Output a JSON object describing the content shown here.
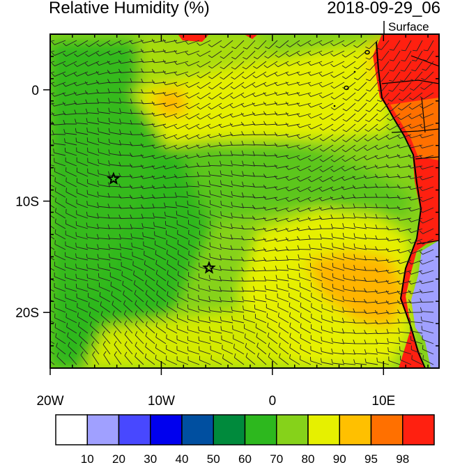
{
  "header": {
    "title": "Relative Humidity (%)",
    "datetime": "2018-09-29_06",
    "level": "Surface"
  },
  "map": {
    "lon_range": [
      -20,
      15
    ],
    "lat_range": [
      -25,
      5
    ],
    "x_ticks": [
      {
        "lon": -20,
        "label": "20W"
      },
      {
        "lon": -10,
        "label": "10W"
      },
      {
        "lon": 0,
        "label": "0"
      },
      {
        "lon": 10,
        "label": "10E"
      }
    ],
    "y_ticks": [
      {
        "lat": 0,
        "label": "0"
      },
      {
        "lat": -10,
        "label": "10S"
      },
      {
        "lat": -20,
        "label": "20S"
      }
    ],
    "markers": [
      {
        "name": "star",
        "lon": -14.3,
        "lat": -8.0
      },
      {
        "name": "star",
        "lon": -5.7,
        "lat": -16.0
      }
    ],
    "field_colors": {
      "green_dark": "#2db81e",
      "green_mid": "#4dc21c",
      "green_light": "#86d21a",
      "yellow": "#e6f000",
      "orange": "#ffc000",
      "orange_red": "#ff7000",
      "red": "#ff2010",
      "lavender": "#a0a0ff"
    }
  },
  "colorbar": {
    "colors": [
      "#ffffff",
      "#a0a0ff",
      "#4848ff",
      "#0000ee",
      "#004fa0",
      "#008a3c",
      "#2db81e",
      "#86d21a",
      "#e6f000",
      "#ffc000",
      "#ff7000",
      "#ff2010"
    ],
    "labels": [
      "10",
      "20",
      "30",
      "40",
      "50",
      "60",
      "70",
      "80",
      "90",
      "95",
      "98"
    ]
  }
}
